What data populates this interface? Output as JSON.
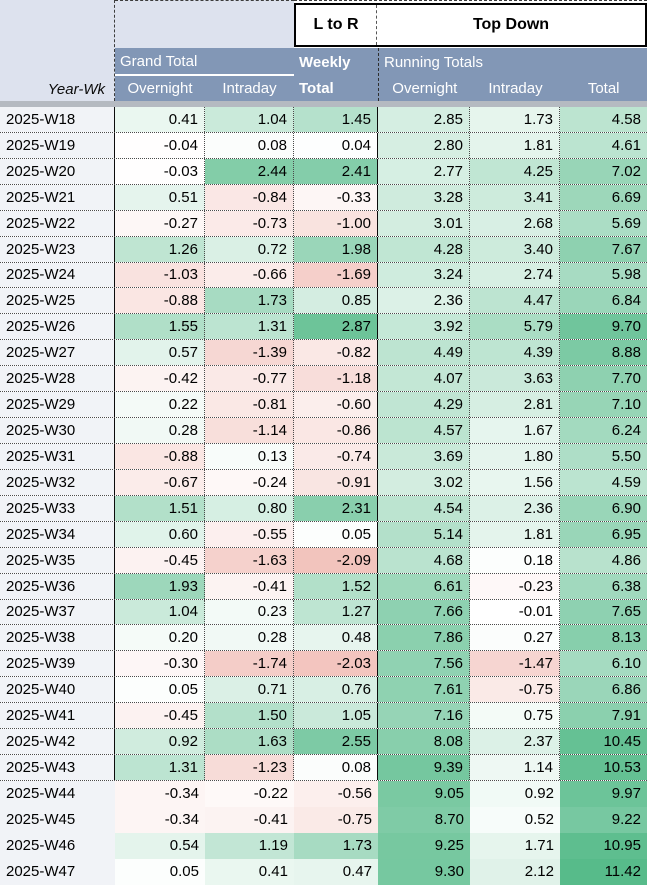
{
  "header": {
    "l_to_r": "L to R",
    "top_down": "Top Down",
    "year_wk": "Year-Wk",
    "grand_total": "Grand Total",
    "weekly": "Weekly",
    "weekly_total": "Total",
    "running_totals": "Running Totals",
    "gt_overnight": "Overnight",
    "gt_intraday": "Intraday",
    "rt_overnight": "Overnight",
    "rt_intraday": "Intraday",
    "rt_total": "Total"
  },
  "colors": {
    "header_bg": "#8297b6",
    "header_text": "#ffffff",
    "corner_bg": "#dde2ee",
    "label_col_bg": "#f1f3f7",
    "divider_strip": "#b5bac1",
    "box_bg": "#ffffff",
    "box_border": "#000000",
    "scale_green": "#57bb8a",
    "scale_red": "#efb5ad"
  },
  "conditional_format": {
    "weekly": {
      "pos_max": 3.3,
      "neg_max": 2.6
    },
    "running": {
      "pos_max": 11.42,
      "neg_max": 2.6
    }
  },
  "rows": [
    {
      "week": "2025-W18",
      "values": [
        "0.41",
        "1.04",
        "1.45",
        "2.85",
        "1.73",
        "4.58"
      ]
    },
    {
      "week": "2025-W19",
      "values": [
        "-0.04",
        "0.08",
        "0.04",
        "2.80",
        "1.81",
        "4.61"
      ]
    },
    {
      "week": "2025-W20",
      "values": [
        "-0.03",
        "2.44",
        "2.41",
        "2.77",
        "4.25",
        "7.02"
      ]
    },
    {
      "week": "2025-W21",
      "values": [
        "0.51",
        "-0.84",
        "-0.33",
        "3.28",
        "3.41",
        "6.69"
      ]
    },
    {
      "week": "2025-W22",
      "values": [
        "-0.27",
        "-0.73",
        "-1.00",
        "3.01",
        "2.68",
        "5.69"
      ]
    },
    {
      "week": "2025-W23",
      "values": [
        "1.26",
        "0.72",
        "1.98",
        "4.28",
        "3.40",
        "7.67"
      ]
    },
    {
      "week": "2025-W24",
      "values": [
        "-1.03",
        "-0.66",
        "-1.69",
        "3.24",
        "2.74",
        "5.98"
      ]
    },
    {
      "week": "2025-W25",
      "values": [
        "-0.88",
        "1.73",
        "0.85",
        "2.36",
        "4.47",
        "6.84"
      ]
    },
    {
      "week": "2025-W26",
      "values": [
        "1.55",
        "1.31",
        "2.87",
        "3.92",
        "5.79",
        "9.70"
      ]
    },
    {
      "week": "2025-W27",
      "values": [
        "0.57",
        "-1.39",
        "-0.82",
        "4.49",
        "4.39",
        "8.88"
      ]
    },
    {
      "week": "2025-W28",
      "values": [
        "-0.42",
        "-0.77",
        "-1.18",
        "4.07",
        "3.63",
        "7.70"
      ]
    },
    {
      "week": "2025-W29",
      "values": [
        "0.22",
        "-0.81",
        "-0.60",
        "4.29",
        "2.81",
        "7.10"
      ]
    },
    {
      "week": "2025-W30",
      "values": [
        "0.28",
        "-1.14",
        "-0.86",
        "4.57",
        "1.67",
        "6.24"
      ]
    },
    {
      "week": "2025-W31",
      "values": [
        "-0.88",
        "0.13",
        "-0.74",
        "3.69",
        "1.80",
        "5.50"
      ]
    },
    {
      "week": "2025-W32",
      "values": [
        "-0.67",
        "-0.24",
        "-0.91",
        "3.02",
        "1.56",
        "4.59"
      ]
    },
    {
      "week": "2025-W33",
      "values": [
        "1.51",
        "0.80",
        "2.31",
        "4.54",
        "2.36",
        "6.90"
      ]
    },
    {
      "week": "2025-W34",
      "values": [
        "0.60",
        "-0.55",
        "0.05",
        "5.14",
        "1.81",
        "6.95"
      ]
    },
    {
      "week": "2025-W35",
      "values": [
        "-0.45",
        "-1.63",
        "-2.09",
        "4.68",
        "0.18",
        "4.86"
      ]
    },
    {
      "week": "2025-W36",
      "values": [
        "1.93",
        "-0.41",
        "1.52",
        "6.61",
        "-0.23",
        "6.38"
      ]
    },
    {
      "week": "2025-W37",
      "values": [
        "1.04",
        "0.23",
        "1.27",
        "7.66",
        "-0.01",
        "7.65"
      ]
    },
    {
      "week": "2025-W38",
      "values": [
        "0.20",
        "0.28",
        "0.48",
        "7.86",
        "0.27",
        "8.13"
      ]
    },
    {
      "week": "2025-W39",
      "values": [
        "-0.30",
        "-1.74",
        "-2.03",
        "7.56",
        "-1.47",
        "6.10"
      ]
    },
    {
      "week": "2025-W40",
      "values": [
        "0.05",
        "0.71",
        "0.76",
        "7.61",
        "-0.75",
        "6.86"
      ]
    },
    {
      "week": "2025-W41",
      "values": [
        "-0.45",
        "1.50",
        "1.05",
        "7.16",
        "0.75",
        "7.91"
      ]
    },
    {
      "week": "2025-W42",
      "values": [
        "0.92",
        "1.63",
        "2.55",
        "8.08",
        "2.37",
        "10.45"
      ]
    },
    {
      "week": "2025-W43",
      "values": [
        "1.31",
        "-1.23",
        "0.08",
        "9.39",
        "1.14",
        "10.53"
      ]
    },
    {
      "week": "2025-W44",
      "values": [
        "-0.34",
        "-0.22",
        "-0.56",
        "9.05",
        "0.92",
        "9.97"
      ]
    },
    {
      "week": "2025-W45",
      "values": [
        "-0.34",
        "-0.41",
        "-0.75",
        "8.70",
        "0.52",
        "9.22"
      ]
    },
    {
      "week": "2025-W46",
      "values": [
        "0.54",
        "1.19",
        "1.73",
        "9.25",
        "1.71",
        "10.95"
      ]
    },
    {
      "week": "2025-W47",
      "values": [
        "0.05",
        "0.41",
        "0.47",
        "9.30",
        "2.12",
        "11.42"
      ]
    }
  ],
  "bordered_rows_through": "2025-W43"
}
